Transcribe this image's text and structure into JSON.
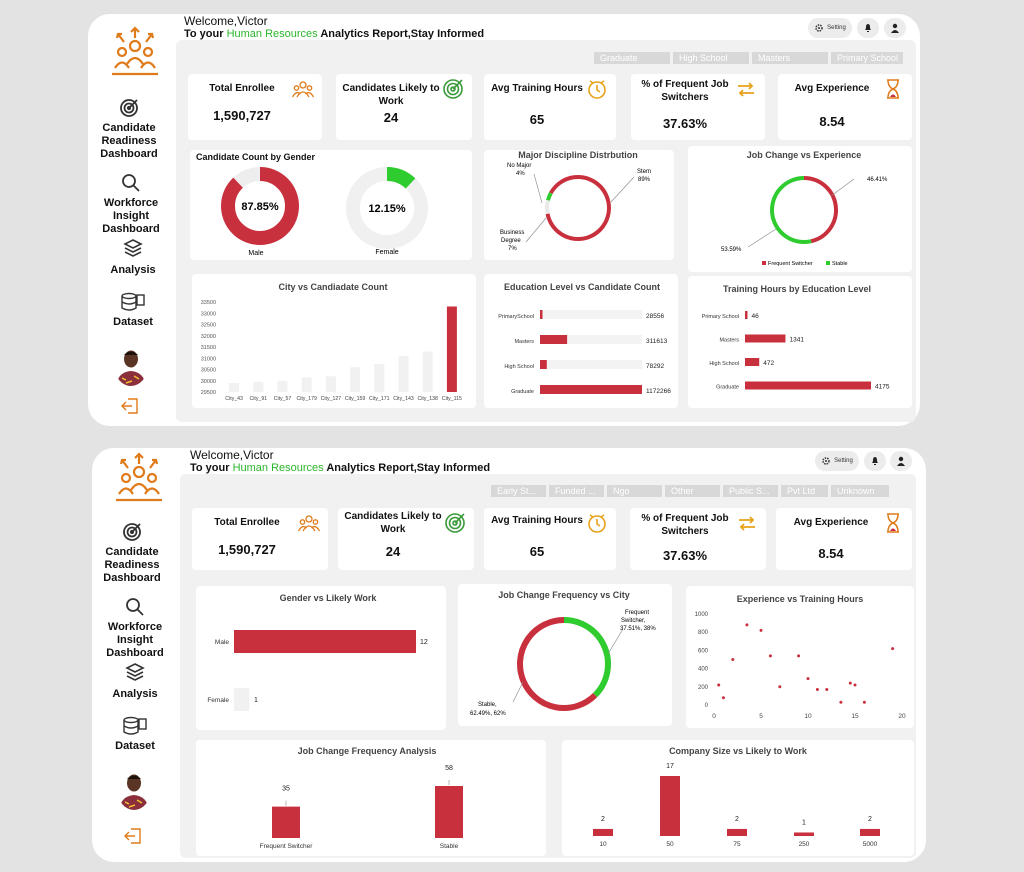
{
  "user": {
    "welcome": "Welcome,Victor",
    "subtitle_pre": "To your ",
    "subtitle_hl": "Human Resources",
    "subtitle_post": " Analytics Report,Stay Informed"
  },
  "topbar": {
    "setting_label": "Setting"
  },
  "nav": {
    "readiness": "Candidate Readiness Dashboard",
    "insight": "Workforce Insight Dashboard",
    "analysis": "Analysis",
    "dataset": "Dataset"
  },
  "colors": {
    "red": "#c9303e",
    "green": "#2ecc2e",
    "orange": "#e07b1a"
  },
  "panel1": {
    "slicers": [
      "Graduate",
      "High School",
      "Masters",
      "Primary School"
    ],
    "kpis": [
      {
        "title": "Total Enrollee",
        "value": "1,590,727",
        "icon": "people-icon"
      },
      {
        "title": "Candidates Likely to Work",
        "value": "24",
        "icon": "target-icon"
      },
      {
        "title": "Avg Training Hours",
        "value": "65",
        "icon": "clock-icon"
      },
      {
        "title": "% of Frequent Job Switchers",
        "value": "37.63%",
        "icon": "swap-icon"
      },
      {
        "title": "Avg Experience",
        "value": "8.54",
        "icon": "hourglass-icon"
      }
    ],
    "gender": {
      "title": "Candidate Count by Gender",
      "male_pct": "87.85%",
      "male_label": "Male",
      "female_pct": "12.15%",
      "female_label": "Female"
    },
    "discipline": {
      "title": "Major Discipline Distrbution",
      "nomajor": "No Major",
      "nomajor_pct": "4%",
      "stem": "Stem",
      "stem_pct": "89%",
      "business1": "Business",
      "business2": "Degree",
      "business_pct": "7%"
    },
    "jobchange": {
      "title": "Job Change vs Experience",
      "top_pct": "46.41%",
      "bottom_pct": "53.59%",
      "legend_a": "Frequent Switcher",
      "legend_b": "Stable"
    },
    "city": {
      "title": "City vs Candiadate Count"
    },
    "education": {
      "title": "Education Level vs Candidate Count"
    },
    "training": {
      "title": "Training Hours by Education Level"
    }
  },
  "panel2": {
    "slicers": [
      "Early St...",
      "Funded ...",
      "Ngo",
      "Other",
      "Public S...",
      "Pvt Ltd",
      "Unknown"
    ],
    "kpis": [
      {
        "title": "Total Enrollee",
        "value": "1,590,727",
        "icon": "people-icon"
      },
      {
        "title": "Candidates Likely to Work",
        "value": "24",
        "icon": "target-icon"
      },
      {
        "title": "Avg Training Hours",
        "value": "65",
        "icon": "clock-icon"
      },
      {
        "title": "% of Frequent Job Switchers",
        "value": "37.63%",
        "icon": "swap-icon"
      },
      {
        "title": "Avg Experience",
        "value": "8.54",
        "icon": "hourglass-icon"
      }
    ],
    "gender_work": {
      "title": "Gender vs Likely Work"
    },
    "jobcity": {
      "title": "Job Change Frequency vs City",
      "switcher1": "Frequent",
      "switcher2": "Switcher,",
      "switcher3": "37.51%, 38%",
      "stable1": "Stable,",
      "stable2": "62.49%, 62%"
    },
    "exp_train": {
      "title": "Experience vs Training Hours"
    },
    "freq": {
      "title": "Job Change Frequency Analysis"
    },
    "company": {
      "title": "Company Size vs Likely to Work"
    }
  },
  "chart_data": [
    {
      "type": "pie",
      "title": "Candidate Count by Gender",
      "categories": [
        "Male",
        "Female"
      ],
      "values": [
        87.85,
        12.15
      ]
    },
    {
      "type": "pie",
      "title": "Major Discipline Distrbution",
      "categories": [
        "Stem",
        "Business Degree",
        "No Major"
      ],
      "values": [
        89,
        7,
        4
      ]
    },
    {
      "type": "pie",
      "title": "Job Change vs Experience",
      "categories": [
        "Frequent Switcher",
        "Stable"
      ],
      "values": [
        46.41,
        53.59
      ],
      "legend": "bottom"
    },
    {
      "type": "bar",
      "title": "City vs Candiadate Count",
      "categories": [
        "City_43",
        "City_91",
        "City_57",
        "City_179",
        "City_127",
        "City_159",
        "City_171",
        "City_143",
        "City_138",
        "City_115"
      ],
      "values": [
        29900,
        29950,
        30000,
        30150,
        30200,
        30600,
        30750,
        31100,
        31300,
        33300
      ],
      "yticks": [
        29500,
        30000,
        30500,
        31000,
        31500,
        32000,
        32500,
        33000,
        33500
      ],
      "ylim": [
        29500,
        33500
      ]
    },
    {
      "type": "bar",
      "title": "Education Level vs Candidate Count",
      "categories": [
        "PrimarySchool",
        "Masters",
        "High School",
        "Graduate"
      ],
      "values": [
        28556,
        311613,
        78292,
        1172266
      ]
    },
    {
      "type": "bar",
      "title": "Training Hours by Education Level",
      "categories": [
        "Primary School",
        "Masters",
        "High School",
        "Graduate"
      ],
      "values": [
        46,
        1341,
        472,
        4175
      ]
    },
    {
      "type": "bar",
      "title": "Gender vs Likely Work",
      "categories": [
        "Male",
        "Female"
      ],
      "values": [
        12,
        1
      ]
    },
    {
      "type": "pie",
      "title": "Job Change Frequency vs City",
      "categories": [
        "Frequent Switcher",
        "Stable"
      ],
      "values": [
        37.51,
        62.49
      ]
    },
    {
      "type": "scatter",
      "title": "Experience vs Training Hours",
      "x": [
        0.5,
        1,
        2,
        3.5,
        5,
        6,
        7,
        9,
        10,
        11,
        12,
        13.5,
        14.5,
        15,
        16,
        19
      ],
      "y": [
        220,
        80,
        500,
        880,
        820,
        540,
        200,
        540,
        290,
        170,
        170,
        30,
        240,
        220,
        30,
        620
      ],
      "xlim": [
        0,
        20
      ],
      "ylim": [
        0,
        1000
      ],
      "xticks": [
        0,
        5,
        10,
        15,
        20
      ],
      "yticks": [
        0,
        200,
        400,
        600,
        800,
        1000
      ]
    },
    {
      "type": "bar",
      "title": "Job Change Frequency Analysis",
      "categories": [
        "Frequent Switcher",
        "Stable"
      ],
      "values": [
        35,
        58
      ]
    },
    {
      "type": "bar",
      "title": "Company Size vs Likely to Work",
      "categories": [
        "10",
        "50",
        "75",
        "250",
        "5000"
      ],
      "values": [
        2,
        17,
        2,
        1,
        2
      ]
    }
  ]
}
